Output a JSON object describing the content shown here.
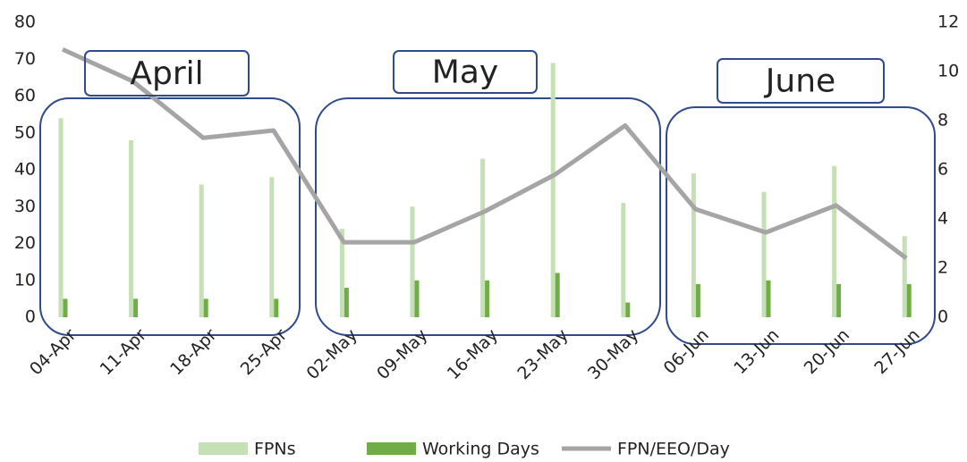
{
  "chart_data": {
    "type": "bar-line",
    "categories": [
      "04-Apr",
      "11-Apr",
      "18-Apr",
      "25-Apr",
      "02-May",
      "09-May",
      "16-May",
      "23-May",
      "30-May",
      "06-Jun",
      "13-Jun",
      "20-Jun",
      "27-Jun"
    ],
    "series": [
      {
        "name": "FPNs",
        "type": "bar",
        "color": "#c5e0b4",
        "values": [
          54,
          48,
          36,
          38,
          24,
          30,
          43,
          69,
          31,
          39,
          34,
          41,
          22
        ]
      },
      {
        "name": "Working Days",
        "type": "bar",
        "color": "#70ad47",
        "values": [
          5,
          5,
          5,
          5,
          8,
          10,
          10,
          12,
          4,
          9,
          10,
          9,
          9
        ]
      },
      {
        "name": "FPN/EEO/Day",
        "type": "line",
        "axis": "y2",
        "color": "#a5a5a5",
        "values": [
          10.9,
          9.6,
          7.3,
          7.6,
          3.05,
          3.05,
          4.3,
          5.8,
          7.8,
          4.4,
          3.45,
          4.55,
          2.4
        ]
      }
    ],
    "ylim": [
      0,
      80
    ],
    "yticks": [
      0,
      10,
      20,
      30,
      40,
      50,
      60,
      70,
      80
    ],
    "y2lim": [
      0,
      12
    ],
    "y2ticks": [
      0,
      2,
      4,
      6,
      8,
      10,
      12
    ],
    "legend": "bottom",
    "annotations": [
      "April",
      "May",
      "June"
    ]
  }
}
